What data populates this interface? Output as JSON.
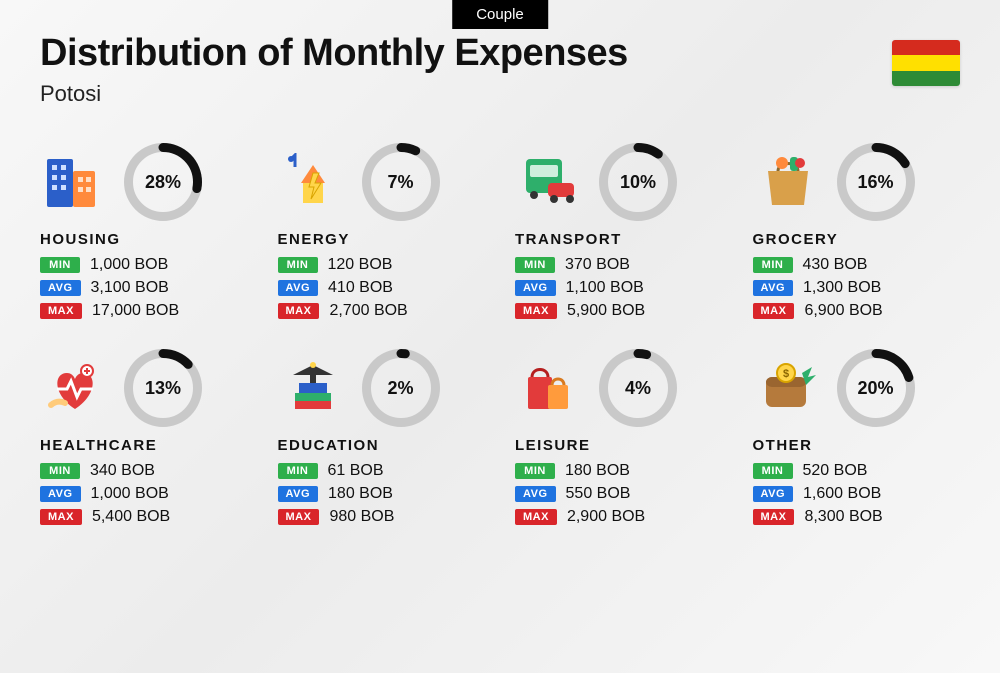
{
  "badge": "Couple",
  "title": "Distribution of Monthly Expenses",
  "subtitle": "Potosi",
  "flag_colors": [
    "#d52b1e",
    "#ffe000",
    "#2e8b36"
  ],
  "currency": "BOB",
  "tag_labels": {
    "min": "MIN",
    "avg": "AVG",
    "max": "MAX"
  },
  "tag_colors": {
    "min": "#2eaf4b",
    "avg": "#1f73e0",
    "max": "#d9252a"
  },
  "donut": {
    "size": 78,
    "stroke": 9,
    "track_color": "#c9c9c9",
    "fill_color": "#111111"
  },
  "categories": [
    {
      "name": "HOUSING",
      "percent": 28,
      "min": "1,000 BOB",
      "avg": "3,100 BOB",
      "max": "17,000 BOB",
      "icon": "buildings"
    },
    {
      "name": "ENERGY",
      "percent": 7,
      "min": "120 BOB",
      "avg": "410 BOB",
      "max": "2,700 BOB",
      "icon": "energy"
    },
    {
      "name": "TRANSPORT",
      "percent": 10,
      "min": "370 BOB",
      "avg": "1,100 BOB",
      "max": "5,900 BOB",
      "icon": "transport"
    },
    {
      "name": "GROCERY",
      "percent": 16,
      "min": "430 BOB",
      "avg": "1,300 BOB",
      "max": "6,900 BOB",
      "icon": "grocery"
    },
    {
      "name": "HEALTHCARE",
      "percent": 13,
      "min": "340 BOB",
      "avg": "1,000 BOB",
      "max": "5,400 BOB",
      "icon": "healthcare"
    },
    {
      "name": "EDUCATION",
      "percent": 2,
      "min": "61 BOB",
      "avg": "180 BOB",
      "max": "980 BOB",
      "icon": "education"
    },
    {
      "name": "LEISURE",
      "percent": 4,
      "min": "180 BOB",
      "avg": "550 BOB",
      "max": "2,900 BOB",
      "icon": "leisure"
    },
    {
      "name": "OTHER",
      "percent": 20,
      "min": "520 BOB",
      "avg": "1,600 BOB",
      "max": "8,300 BOB",
      "icon": "other"
    }
  ]
}
